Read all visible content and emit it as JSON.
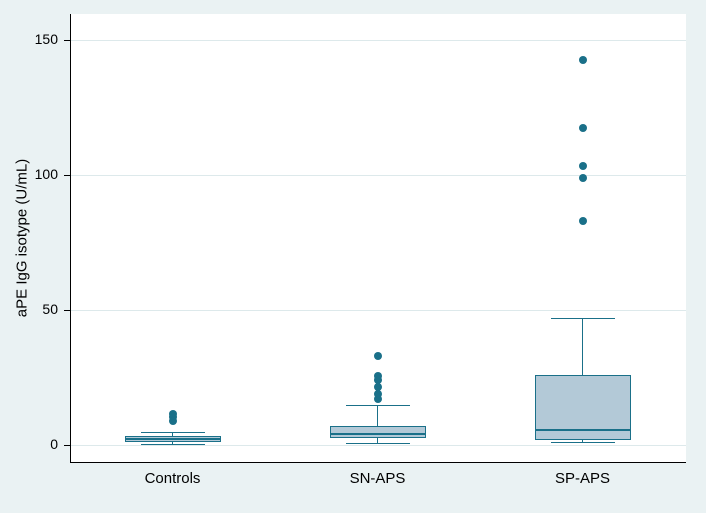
{
  "figure": {
    "background": "#eaf2f3",
    "plot_background": "#ffffff",
    "grid_color": "#dde9eb",
    "axis_color": "#000000",
    "box_stroke": "#1a7089",
    "box_fill": "#b3c9d7",
    "outlier_color": "#1a7089"
  },
  "chart_data": {
    "type": "box",
    "title": "",
    "xlabel": "",
    "ylabel": "aPE IgG isotype (U/mL)",
    "ylim": [
      0,
      155
    ],
    "yticks": [
      0,
      50,
      100,
      150
    ],
    "grid": true,
    "legend": false,
    "categories": [
      "Controls",
      "SN-APS",
      "SP-APS"
    ],
    "series": [
      {
        "category": "Controls",
        "whisker_low": 0.3,
        "q1": 1,
        "median": 2.2,
        "q3": 3.5,
        "whisker_high": 5,
        "outliers": [
          9,
          10.5,
          11.5
        ]
      },
      {
        "category": "SN-APS",
        "whisker_low": 0.8,
        "q1": 2.5,
        "median": 4,
        "q3": 7.2,
        "whisker_high": 15,
        "outliers": [
          17,
          19,
          21.5,
          24,
          25.5,
          33
        ]
      },
      {
        "category": "SP-APS",
        "whisker_low": 1,
        "q1": 2,
        "median": 5.5,
        "q3": 26,
        "whisker_high": 47,
        "outliers": [
          83,
          99,
          103.5,
          117.5,
          142.5
        ]
      }
    ]
  }
}
